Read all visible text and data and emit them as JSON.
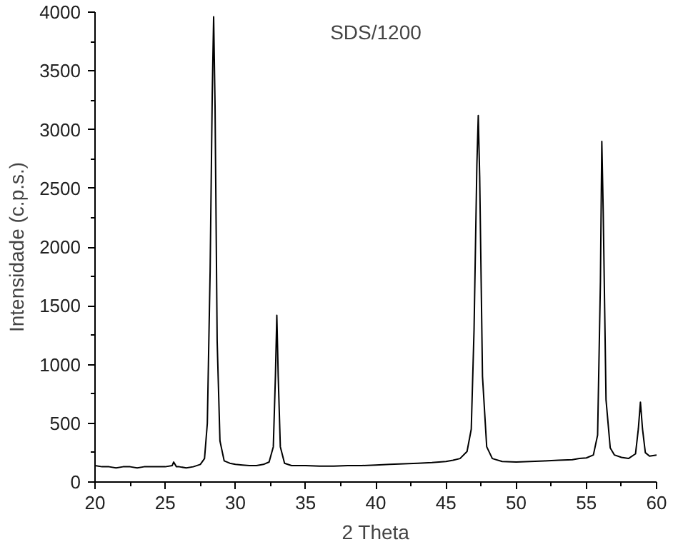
{
  "chart_data": {
    "type": "line",
    "title": "SDS/1200",
    "xlabel": "2 Theta",
    "ylabel": "Intensidade (c.p.s.)",
    "x": [
      20,
      20.5,
      21,
      21.5,
      22,
      22.5,
      23,
      23.5,
      24,
      24.5,
      25,
      25.5,
      25.6,
      25.8,
      26,
      26.5,
      27,
      27.5,
      27.8,
      28,
      28.2,
      28.35,
      28.45,
      28.55,
      28.7,
      28.9,
      29.2,
      29.6,
      30,
      30.5,
      31,
      31.5,
      32,
      32.4,
      32.7,
      32.85,
      32.95,
      33.05,
      33.2,
      33.5,
      34,
      35,
      36,
      37,
      38,
      39,
      40,
      41,
      42,
      43,
      44,
      45,
      45.5,
      46,
      46.5,
      46.8,
      47.0,
      47.2,
      47.3,
      47.4,
      47.6,
      47.9,
      48.3,
      49,
      50,
      51,
      52,
      53,
      54,
      54.5,
      55,
      55.5,
      55.8,
      56.0,
      56.1,
      56.2,
      56.4,
      56.7,
      57,
      57.5,
      58,
      58.5,
      58.7,
      58.85,
      59.0,
      59.2,
      59.5,
      60
    ],
    "values": [
      140,
      130,
      130,
      120,
      130,
      130,
      120,
      130,
      130,
      130,
      130,
      140,
      170,
      130,
      130,
      120,
      130,
      150,
      200,
      500,
      1800,
      3300,
      3960,
      3200,
      1200,
      350,
      180,
      160,
      150,
      145,
      140,
      140,
      150,
      170,
      300,
      900,
      1420,
      900,
      300,
      160,
      140,
      140,
      135,
      135,
      140,
      140,
      145,
      150,
      155,
      160,
      165,
      175,
      185,
      200,
      260,
      450,
      1300,
      2700,
      3120,
      2600,
      900,
      300,
      200,
      175,
      170,
      175,
      180,
      185,
      190,
      200,
      205,
      230,
      400,
      1700,
      2900,
      2300,
      700,
      290,
      230,
      210,
      200,
      240,
      450,
      680,
      450,
      250,
      220,
      230
    ],
    "xlim": [
      20,
      60
    ],
    "ylim": [
      0,
      4000
    ],
    "xticks": [
      20,
      25,
      30,
      35,
      40,
      45,
      50,
      55,
      60
    ],
    "yticks": [
      0,
      500,
      1000,
      1500,
      2000,
      2500,
      3000,
      3500,
      4000
    ],
    "color": "#000000",
    "marker": "none",
    "line_style": "solid"
  }
}
